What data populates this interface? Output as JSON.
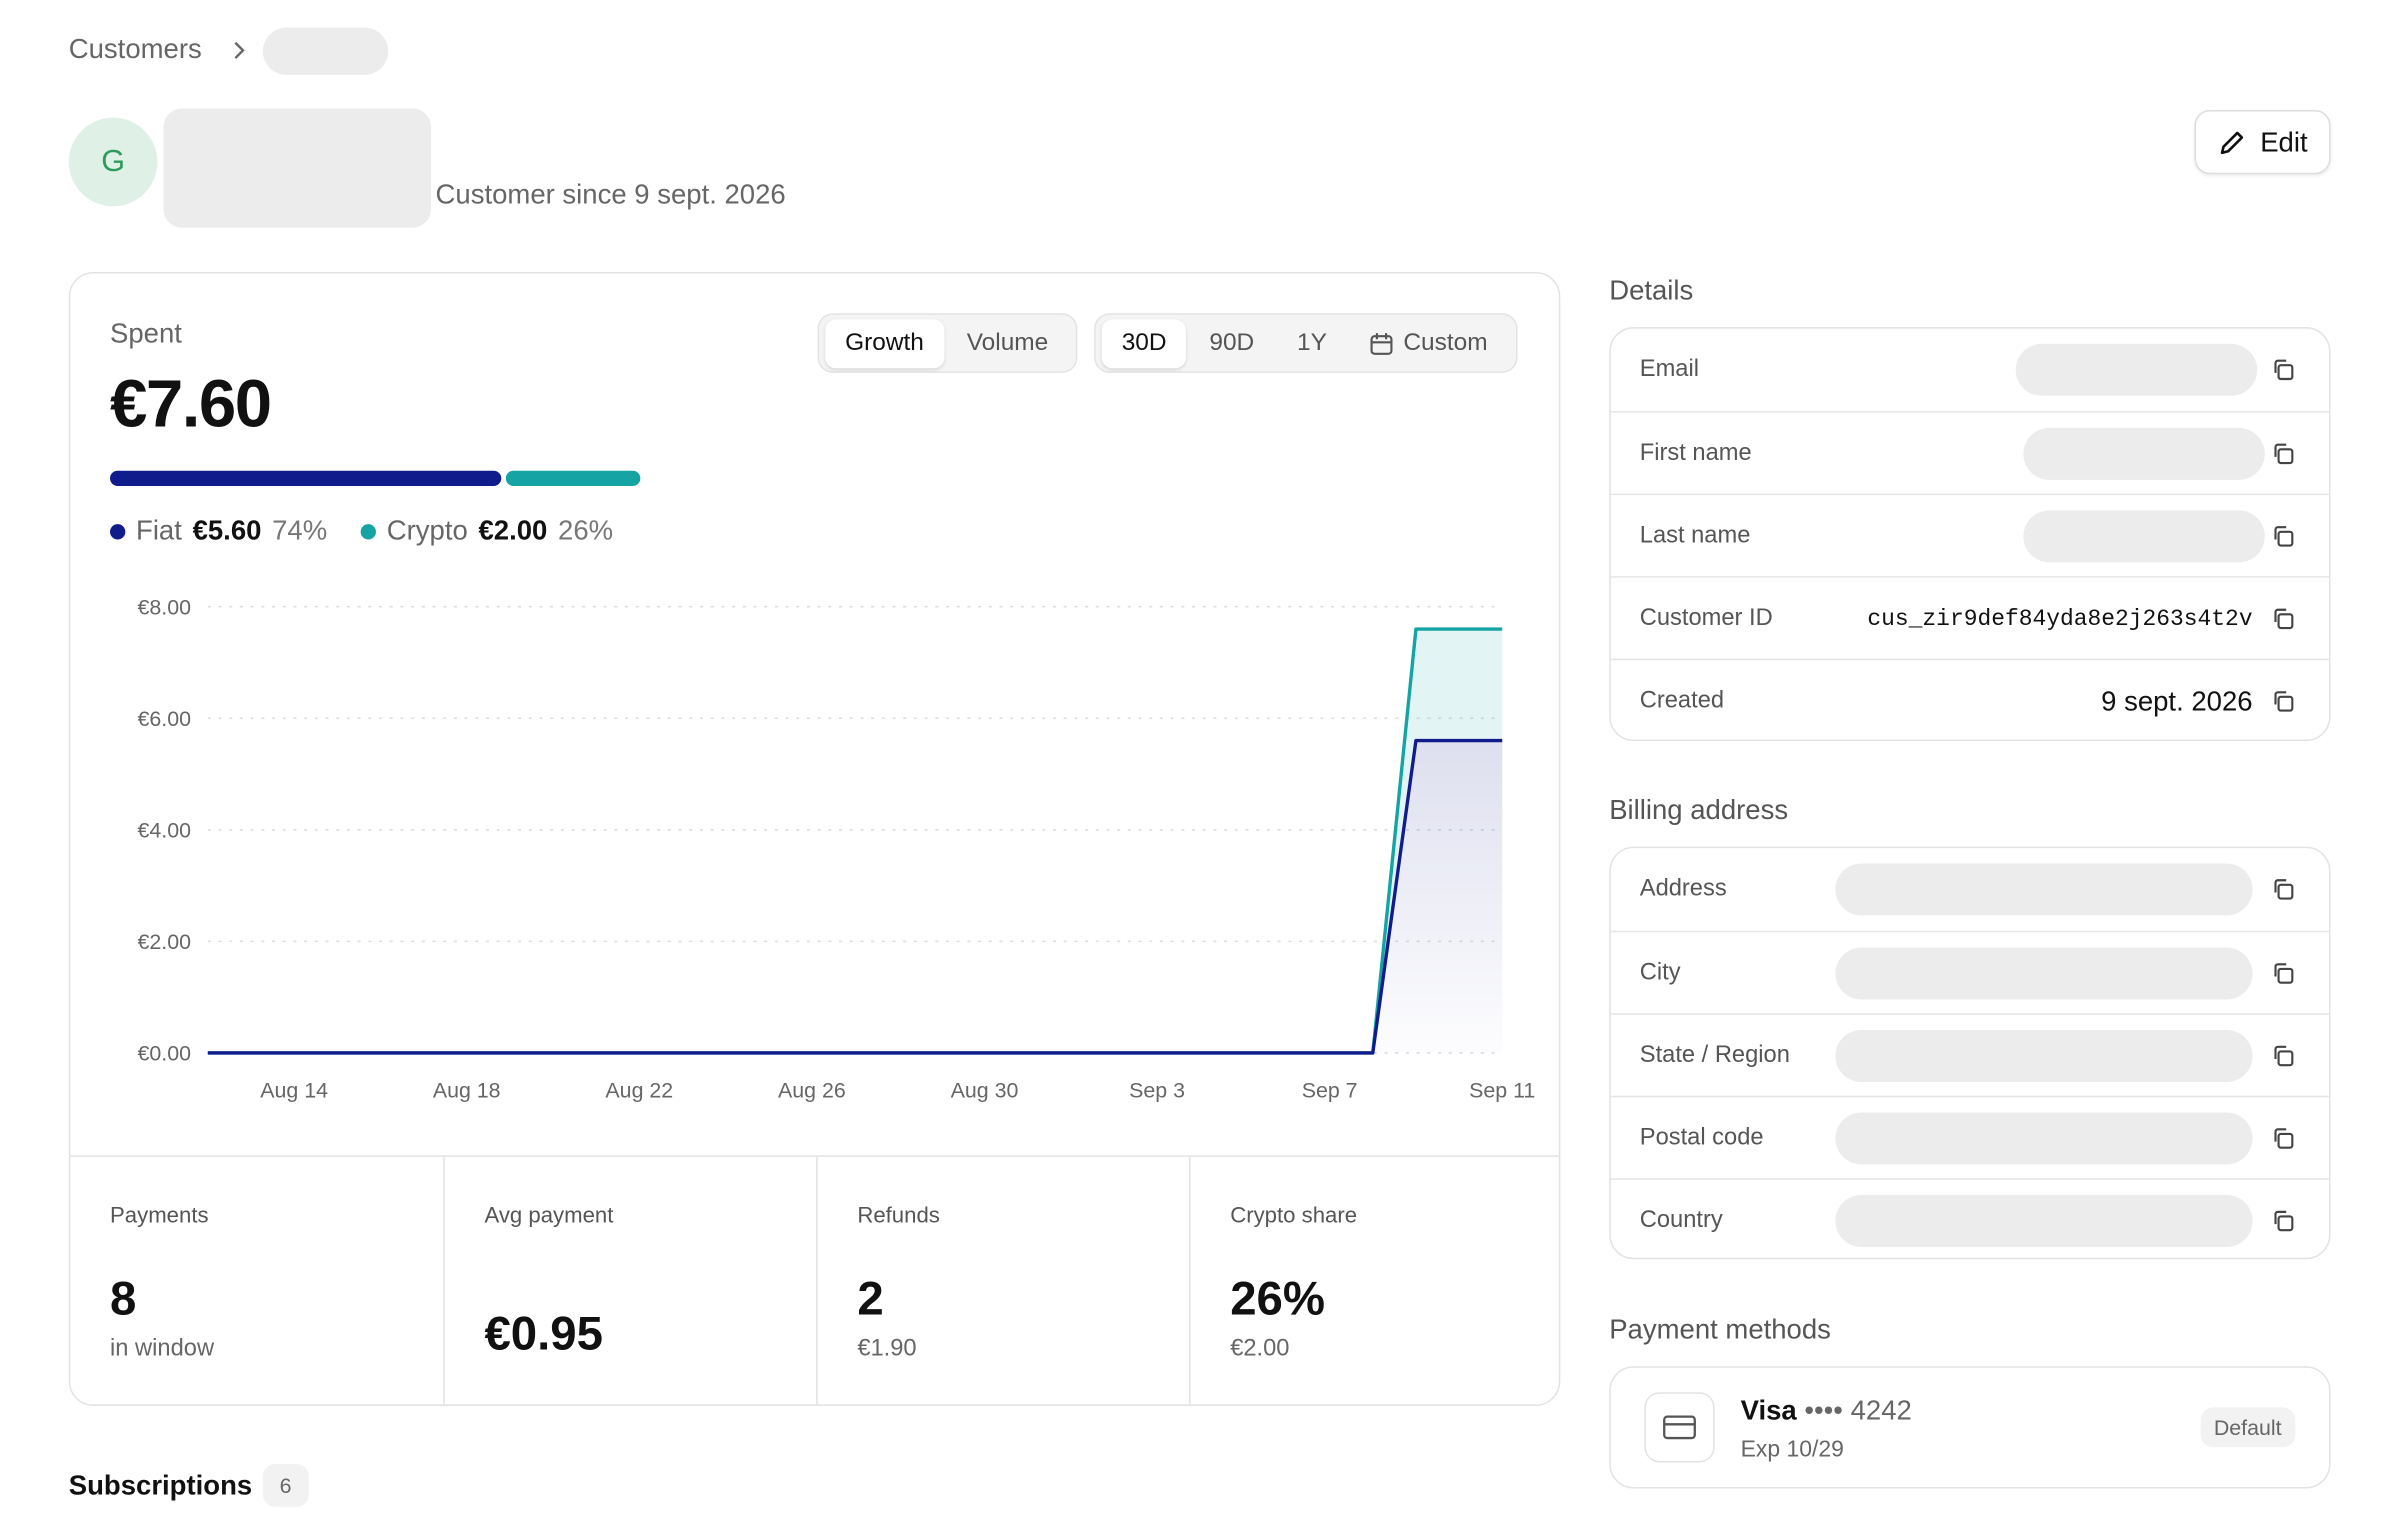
{
  "breadcrumb": {
    "root": "Customers"
  },
  "customer": {
    "initial": "G",
    "since": "Customer since 9 sept. 2026",
    "edit": "Edit"
  },
  "summary": {
    "label": "Spent",
    "total": "€7.60",
    "segments": [
      {
        "name": "Fiat",
        "amount": "€5.60",
        "share": 74,
        "share_label": "74%",
        "color": "#111c8c"
      },
      {
        "name": "Crypto",
        "amount": "€2.00",
        "share": 26,
        "share_label": "26%",
        "color": "#16a3a3"
      }
    ]
  },
  "tabs": {
    "mode": [
      "Growth",
      "Volume"
    ],
    "range": [
      "30D",
      "90D",
      "1Y",
      "Custom"
    ]
  },
  "chart_data": {
    "type": "area",
    "stacked": true,
    "categories": [
      null,
      null,
      "Aug 14",
      null,
      null,
      null,
      "Aug 18",
      null,
      null,
      null,
      "Aug 22",
      null,
      null,
      null,
      "Aug 26",
      null,
      null,
      null,
      "Aug 30",
      null,
      null,
      null,
      "Sep 3",
      null,
      null,
      null,
      "Sep 7",
      null,
      null,
      null,
      "Sep 11"
    ],
    "series": [
      {
        "name": "Fiat",
        "color": "#111c8c",
        "values": [
          0,
          0,
          0,
          0,
          0,
          0,
          0,
          0,
          0,
          0,
          0,
          0,
          0,
          0,
          0,
          0,
          0,
          0,
          0,
          0,
          0,
          0,
          0,
          0,
          0,
          0,
          0,
          0,
          5.6,
          5.6,
          5.6
        ]
      },
      {
        "name": "Crypto",
        "color": "#16a3a3",
        "values": [
          0,
          0,
          0,
          0,
          0,
          0,
          0,
          0,
          0,
          0,
          0,
          0,
          0,
          0,
          0,
          0,
          0,
          0,
          0,
          0,
          0,
          0,
          0,
          0,
          0,
          0,
          0,
          0,
          2,
          2,
          2
        ]
      }
    ],
    "ylim": [
      0,
      8
    ],
    "yticks": [
      {
        "value": 0,
        "label": "€0.00"
      },
      {
        "value": 2,
        "label": "€2.00"
      },
      {
        "value": 4,
        "label": "€4.00"
      },
      {
        "value": 6,
        "label": "€6.00"
      },
      {
        "value": 8,
        "label": "€8.00"
      }
    ],
    "grid": true
  },
  "stats": [
    {
      "label": "Payments",
      "value": "8",
      "note": "in window"
    },
    {
      "label": "Avg payment",
      "value": "€0.95"
    },
    {
      "label": "Refunds",
      "value": "2",
      "note": "€1.90"
    },
    {
      "label": "Crypto share",
      "value": "26%",
      "note": "€2.00"
    }
  ],
  "details": {
    "title": "Details",
    "rows": [
      {
        "label": "Email"
      },
      {
        "label": "First name"
      },
      {
        "label": "Last name"
      },
      {
        "label": "Customer ID",
        "value": "cus_zir9def84yda8e2j263s4t2v",
        "mono": true
      },
      {
        "label": "Created",
        "value": "9 sept. 2026"
      }
    ]
  },
  "billing": {
    "title": "Billing address",
    "rows": [
      {
        "label": "Address"
      },
      {
        "label": "City"
      },
      {
        "label": "State / Region"
      },
      {
        "label": "Postal code"
      },
      {
        "label": "Country"
      }
    ]
  },
  "payment_methods": {
    "title": "Payment methods",
    "brand": "Visa",
    "dots": "••••",
    "last4": "4242",
    "exp": "Exp 10/29",
    "badge": "Default"
  },
  "subscriptions": {
    "title": "Subscriptions",
    "count": "6"
  }
}
